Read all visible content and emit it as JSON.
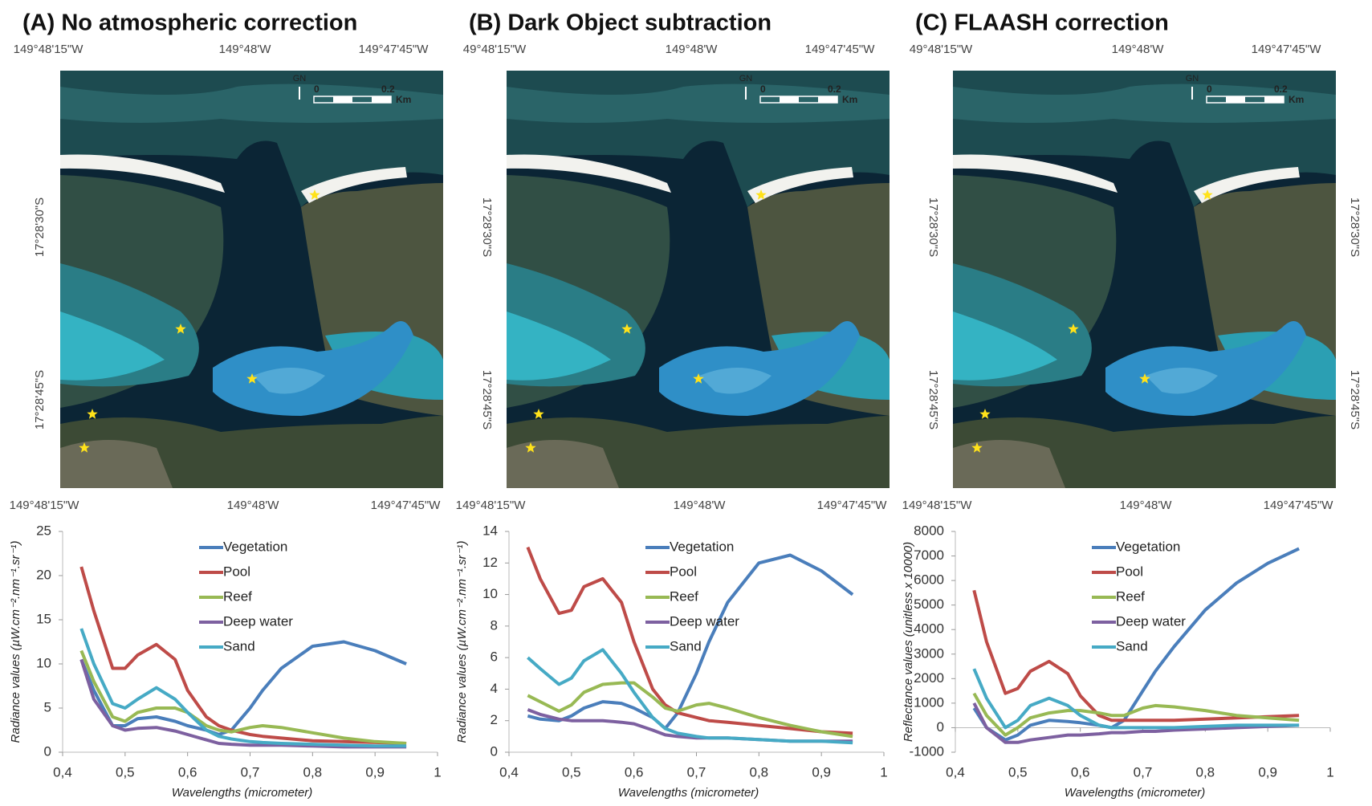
{
  "chart_data": [
    {
      "type": "line",
      "title": "(A) No atmospheric correction",
      "map": {
        "top_labels": [
          "149°48'15\"W",
          "149°48'W",
          "149°47'45\"W"
        ],
        "bottom_labels": [
          "149°48'15\"W",
          "149°48'W",
          "149°47'45\"W"
        ],
        "left_labels": [
          "17°28'30\"S",
          "17°28'45\"S"
        ],
        "north": "GN",
        "scale_labels": [
          "0",
          "0.2",
          "Km"
        ]
      },
      "ylabel": "Radiance values (µW.cm⁻².nm⁻¹.sr⁻¹)",
      "xlabel": "Wavelengths (micrometer)",
      "x": [
        0.43,
        0.45,
        0.48,
        0.5,
        0.52,
        0.55,
        0.58,
        0.6,
        0.63,
        0.65,
        0.67,
        0.7,
        0.72,
        0.75,
        0.8,
        0.85,
        0.9,
        0.95
      ],
      "xlim": [
        0.4,
        1
      ],
      "xticks": [
        {
          "value": 0.4,
          "label": "0,4"
        },
        {
          "value": 0.5,
          "label": "0,5"
        },
        {
          "value": 0.6,
          "label": "0,6"
        },
        {
          "value": 0.7,
          "label": "0,7"
        },
        {
          "value": 0.8,
          "label": "0,8"
        },
        {
          "value": 0.9,
          "label": "0,9"
        },
        1
      ],
      "ylim": [
        0,
        25
      ],
      "yticks": [
        0,
        5,
        10,
        15,
        20,
        25
      ],
      "legend": "top",
      "series": [
        {
          "name": "Vegetation",
          "color": "#4a7ebb",
          "values": [
            10.5,
            7,
            3,
            3,
            3.8,
            4,
            3.5,
            3,
            2.5,
            2,
            2.5,
            5,
            7,
            9.5,
            12,
            12.5,
            11.5,
            10
          ]
        },
        {
          "name": "Pool",
          "color": "#be4b48",
          "values": [
            21,
            16,
            9.5,
            9.5,
            11,
            12.2,
            10.5,
            7,
            4,
            3,
            2.5,
            2,
            1.8,
            1.6,
            1.3,
            1.2,
            1.1,
            1
          ]
        },
        {
          "name": "Reef",
          "color": "#98b954",
          "values": [
            11.5,
            8,
            4,
            3.5,
            4.5,
            5,
            5,
            4.5,
            3,
            2.5,
            2.3,
            2.8,
            3,
            2.8,
            2.2,
            1.6,
            1.2,
            1
          ]
        },
        {
          "name": "Deep water",
          "color": "#7d60a0",
          "values": [
            10.5,
            6,
            3,
            2.5,
            2.7,
            2.8,
            2.4,
            2,
            1.4,
            1,
            0.9,
            0.8,
            0.8,
            0.8,
            0.7,
            0.6,
            0.6,
            0.6
          ]
        },
        {
          "name": "Sand",
          "color": "#46aac5",
          "values": [
            14,
            10,
            5.5,
            5,
            6,
            7.3,
            6,
            4.5,
            2.5,
            1.8,
            1.5,
            1.2,
            1.1,
            1,
            0.9,
            0.8,
            0.7,
            0.7
          ]
        }
      ]
    },
    {
      "type": "line",
      "title": "(B) Dark Object subtraction",
      "map": {
        "top_labels": [
          "49°48'15\"W",
          "149°48'W",
          "149°47'45\"W"
        ],
        "bottom_labels": [
          "149°48'15\"W",
          "149°48'W",
          "149°47'45\"W"
        ],
        "left_labels": [
          "17°28'30\"S",
          "17°28'45\"S"
        ],
        "north": "GN",
        "scale_labels": [
          "0",
          "0.2",
          "Km"
        ]
      },
      "ylabel": "Radiance values (µW.cm⁻².nm⁻¹.sr⁻¹)",
      "xlabel": "Wavelengths (micrometer)",
      "x": [
        0.43,
        0.45,
        0.48,
        0.5,
        0.52,
        0.55,
        0.58,
        0.6,
        0.63,
        0.65,
        0.67,
        0.7,
        0.72,
        0.75,
        0.8,
        0.85,
        0.9,
        0.95
      ],
      "xlim": [
        0.4,
        1
      ],
      "xticks": [
        {
          "value": 0.4,
          "label": "0,4"
        },
        {
          "value": 0.5,
          "label": "0,5"
        },
        {
          "value": 0.6,
          "label": "0,6"
        },
        {
          "value": 0.7,
          "label": "0,7"
        },
        {
          "value": 0.8,
          "label": "0,8"
        },
        {
          "value": 0.9,
          "label": "0,9"
        },
        1
      ],
      "ylim": [
        0,
        14
      ],
      "yticks": [
        0,
        2,
        4,
        6,
        8,
        10,
        12,
        14
      ],
      "legend": "top",
      "series": [
        {
          "name": "Vegetation",
          "color": "#4a7ebb",
          "values": [
            2.3,
            2.1,
            2,
            2.3,
            2.8,
            3.2,
            3.1,
            2.8,
            2.2,
            1.5,
            2.5,
            5,
            7,
            9.5,
            12,
            12.5,
            11.5,
            10
          ]
        },
        {
          "name": "Pool",
          "color": "#be4b48",
          "values": [
            13,
            11,
            8.8,
            9,
            10.5,
            11,
            9.5,
            7,
            4,
            3,
            2.5,
            2.2,
            2,
            1.9,
            1.7,
            1.5,
            1.3,
            1.2
          ]
        },
        {
          "name": "Reef",
          "color": "#98b954",
          "values": [
            3.6,
            3.2,
            2.6,
            3,
            3.8,
            4.3,
            4.4,
            4.4,
            3.5,
            2.8,
            2.6,
            3,
            3.1,
            2.8,
            2.2,
            1.7,
            1.3,
            1
          ]
        },
        {
          "name": "Deep water",
          "color": "#7d60a0",
          "values": [
            2.7,
            2.4,
            2.1,
            2,
            2,
            2,
            1.9,
            1.8,
            1.4,
            1.1,
            1,
            0.9,
            0.9,
            0.9,
            0.8,
            0.7,
            0.7,
            0.7
          ]
        },
        {
          "name": "Sand",
          "color": "#46aac5",
          "values": [
            6,
            5.3,
            4.3,
            4.7,
            5.8,
            6.5,
            5,
            3.8,
            2.2,
            1.5,
            1.2,
            1,
            0.9,
            0.9,
            0.8,
            0.7,
            0.7,
            0.6
          ]
        }
      ]
    },
    {
      "type": "line",
      "title": "(C) FLAASH correction",
      "map": {
        "top_labels": [
          "49°48'15\"W",
          "149°48'W",
          "149°47'45\"W"
        ],
        "bottom_labels": [
          "149°48'15\"W",
          "149°48'W",
          "149°47'45\"W"
        ],
        "left_labels": [
          "17°28'30\"S",
          "17°28'45\"S"
        ],
        "right_labels": [
          "17°28'30\"S",
          "17°28'45\"S"
        ],
        "north": "GN",
        "scale_labels": [
          "0",
          "0.2",
          "Km"
        ]
      },
      "ylabel": "Reflectance values (unitless x 10000)",
      "xlabel": "Wavelengths (micrometer)",
      "x": [
        0.43,
        0.45,
        0.48,
        0.5,
        0.52,
        0.55,
        0.58,
        0.6,
        0.63,
        0.65,
        0.67,
        0.7,
        0.72,
        0.75,
        0.8,
        0.85,
        0.9,
        0.95
      ],
      "xlim": [
        0.4,
        1
      ],
      "xticks": [
        {
          "value": 0.4,
          "label": "0,4"
        },
        {
          "value": 0.5,
          "label": "0,5"
        },
        {
          "value": 0.6,
          "label": "0,6"
        },
        {
          "value": 0.7,
          "label": "0,7"
        },
        {
          "value": 0.8,
          "label": "0,8"
        },
        {
          "value": 0.9,
          "label": "0,9"
        },
        1
      ],
      "ylim": [
        -1000,
        8000
      ],
      "yticks": [
        -1000,
        0,
        1000,
        2000,
        3000,
        4000,
        5000,
        6000,
        7000,
        8000
      ],
      "legend": "top",
      "series": [
        {
          "name": "Vegetation",
          "color": "#4a7ebb",
          "values": [
            800,
            0,
            -500,
            -300,
            100,
            300,
            250,
            200,
            100,
            0,
            300,
            1500,
            2300,
            3300,
            4800,
            5900,
            6700,
            7300
          ]
        },
        {
          "name": "Pool",
          "color": "#be4b48",
          "values": [
            5600,
            3500,
            1400,
            1600,
            2300,
            2700,
            2200,
            1300,
            500,
            300,
            300,
            300,
            300,
            300,
            350,
            400,
            450,
            500
          ]
        },
        {
          "name": "Reef",
          "color": "#98b954",
          "values": [
            1400,
            500,
            -300,
            0,
            400,
            600,
            700,
            700,
            600,
            500,
            500,
            800,
            900,
            850,
            700,
            500,
            400,
            300
          ]
        },
        {
          "name": "Deep water",
          "color": "#7d60a0",
          "values": [
            1000,
            0,
            -600,
            -600,
            -500,
            -400,
            -300,
            -300,
            -250,
            -200,
            -200,
            -150,
            -150,
            -100,
            -50,
            0,
            50,
            100
          ]
        },
        {
          "name": "Sand",
          "color": "#46aac5",
          "values": [
            2400,
            1200,
            0,
            300,
            900,
            1200,
            900,
            500,
            100,
            0,
            0,
            0,
            0,
            0,
            50,
            100,
            100,
            100
          ]
        }
      ]
    }
  ]
}
